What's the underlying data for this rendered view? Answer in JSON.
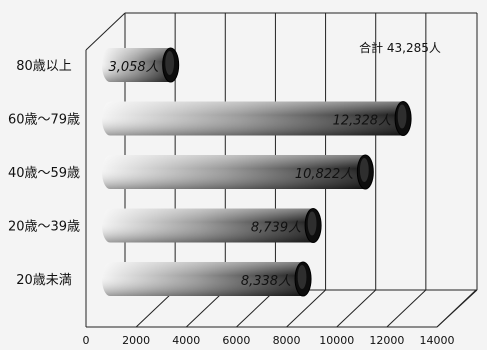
{
  "chart_data": {
    "type": "bar",
    "orientation": "horizontal",
    "style": "3d-cylinder",
    "categories": [
      "80歳以上",
      "60歳〜79歳",
      "40歳〜59歳",
      "20歳〜39歳",
      "20歳未満"
    ],
    "values": [
      3058,
      12328,
      10822,
      8739,
      8338
    ],
    "value_labels": [
      "3,058人",
      "12,328人",
      "10,822人",
      "8,739人",
      "8,338人"
    ],
    "xlim": [
      0,
      14000
    ],
    "ticks": [
      0,
      2000,
      4000,
      6000,
      8000,
      10000,
      12000,
      14000
    ],
    "tick_labels": [
      "0",
      "2000",
      "4000",
      "6000",
      "8000",
      "10000",
      "12000",
      "14000"
    ],
    "annotation": "合計 43,285人",
    "grid": true,
    "colors": {
      "bar_light": "#f2f2f2",
      "bar_dark": "#1a1a1a",
      "cap": "#0d0d0d"
    }
  }
}
